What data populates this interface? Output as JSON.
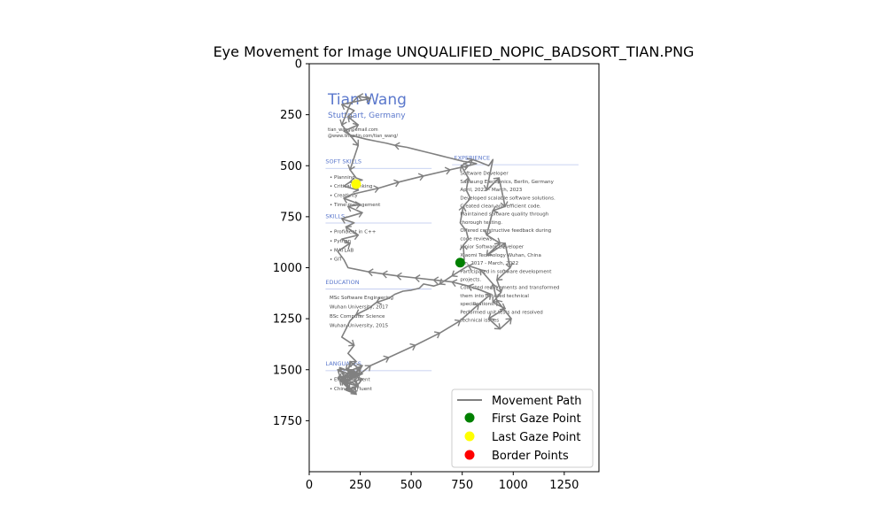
{
  "chart_data": {
    "type": "line",
    "title": "Eye Movement for Image UNQUALIFIED_NOPIC_BADSORT_TIAN.PNG",
    "xlabel": "",
    "ylabel": "",
    "xlim": [
      0,
      1420
    ],
    "ylim": [
      2000,
      0
    ],
    "x_ticks": [
      0,
      250,
      500,
      750,
      1000,
      1250
    ],
    "y_ticks": [
      0,
      250,
      500,
      750,
      1000,
      1250,
      1500,
      1750
    ],
    "y_inverted": true,
    "grid": false,
    "legend_position": "lower-right",
    "series": [
      {
        "name": "Movement Path",
        "color": "#808080",
        "x": [
          740,
          760,
          755,
          780,
          770,
          740,
          755,
          790,
          770,
          780,
          745,
          800,
          830,
          880,
          900,
          870,
          930,
          960,
          900,
          870,
          935,
          870,
          960,
          985,
          920,
          940,
          900,
          960,
          880,
          935,
          990,
          920,
          900,
          840,
          780,
          700,
          640,
          610,
          560,
          540,
          500,
          460,
          420,
          390,
          330,
          290,
          230,
          200,
          180,
          160,
          220,
          190,
          230,
          180,
          260,
          200,
          160,
          240,
          180,
          230,
          150,
          210,
          180,
          240,
          140,
          200,
          150,
          230,
          180,
          260,
          210,
          150,
          240,
          200,
          170,
          230,
          160,
          250,
          200,
          190,
          260,
          200,
          140,
          220,
          180,
          250,
          300,
          390,
          520,
          640,
          740,
          830,
          890,
          840,
          780,
          700,
          610,
          520,
          430,
          360,
          290,
          240,
          190,
          170,
          140,
          200,
          160,
          240,
          180,
          220,
          160,
          260,
          190,
          250,
          170,
          210,
          340,
          440,
          560,
          690,
          780,
          820,
          800,
          760,
          720,
          680,
          640,
          600,
          560,
          520,
          480,
          420,
          380,
          330,
          280,
          240,
          200,
          170,
          240,
          190,
          220,
          160,
          300,
          240,
          200,
          160,
          240,
          200,
          230,
          260,
          200,
          170,
          240,
          230
        ],
        "y": [
          975,
          960,
          890,
          860,
          820,
          780,
          700,
          660,
          620,
          560,
          500,
          470,
          480,
          500,
          470,
          620,
          560,
          700,
          720,
          840,
          880,
          940,
          880,
          1000,
          1060,
          1120,
          1170,
          1200,
          1250,
          1300,
          1250,
          1160,
          1080,
          1010,
          990,
          1040,
          1080,
          1090,
          1080,
          1100,
          1110,
          1115,
          1130,
          1150,
          1170,
          1200,
          1230,
          1260,
          1300,
          1340,
          1380,
          1420,
          1460,
          1500,
          1520,
          1545,
          1560,
          1580,
          1600,
          1620,
          1550,
          1500,
          1560,
          1520,
          1540,
          1600,
          1490,
          1520,
          1570,
          1545,
          1610,
          1530,
          1580,
          1500,
          1560,
          1620,
          1550,
          1500,
          1460,
          1510,
          1480,
          1540,
          1500,
          1530,
          1560,
          1520,
          1480,
          1440,
          1380,
          1320,
          1260,
          1180,
          1130,
          1110,
          1090,
          1070,
          1060,
          1050,
          1040,
          1030,
          1020,
          1010,
          1000,
          960,
          920,
          880,
          860,
          840,
          800,
          780,
          760,
          730,
          700,
          690,
          660,
          640,
          610,
          580,
          550,
          520,
          500,
          490,
          485,
          480,
          470,
          460,
          450,
          440,
          430,
          420,
          410,
          400,
          390,
          380,
          370,
          360,
          350,
          330,
          300,
          260,
          230,
          200,
          170,
          160,
          200,
          300,
          400,
          520,
          560,
          570,
          580,
          600,
          620,
          590
        ],
        "arrows": true
      }
    ],
    "markers": [
      {
        "name": "First Gaze Point",
        "color": "#008000",
        "x": 740,
        "y": 975
      },
      {
        "name": "Last Gaze Point",
        "color": "#ffff00",
        "x": 230,
        "y": 590
      },
      {
        "name": "Border Points",
        "color": "#ff0000",
        "points": []
      }
    ],
    "background_document": {
      "name": "Tian Wang",
      "location": "Stuttgart, Germany",
      "contacts": [
        "tian_wang@email.com",
        "@www.linkedin.com/tian_wang/"
      ],
      "sections_left": [
        {
          "heading": "SOFT SKILLS",
          "items": [
            "Planning",
            "Critical thinking",
            "Creativity",
            "Time-management"
          ]
        },
        {
          "heading": "SKILLS",
          "items": [
            "Proficient in C++",
            "Python",
            "MATLAB",
            "GIT"
          ]
        },
        {
          "heading": "EDUCATION",
          "items": [
            "MSc Software Engineering",
            "Wuhan University, 2017",
            "BSc Computer Science",
            "Wuhan University, 2015"
          ]
        },
        {
          "heading": "LANGUAGES",
          "items": [
            "English: Fluent",
            "Chinese: Fluent"
          ]
        }
      ],
      "sections_right": [
        {
          "heading": "EXPERIENCE",
          "items": [
            "Software Developer",
            "Samsung Electronics, Berlin, Germany",
            "April, 2022 - March, 2023",
            "Developed scalable software solutions.",
            "Created clean and efficient code.",
            "Maintained software quality through",
            "thorough testing.",
            "Offered constructive feedback during",
            "code reviews.",
            "Junior Software Developer",
            "Xiaomi Technology Wuhan, China",
            "Jan, 2017 - March, 2022",
            "Participated in software development",
            "projects.",
            "Collected requirements and transformed",
            "them into detailed technical",
            "specifications.",
            "Performed unit tests and resolved",
            "technical issues"
          ]
        }
      ]
    }
  }
}
